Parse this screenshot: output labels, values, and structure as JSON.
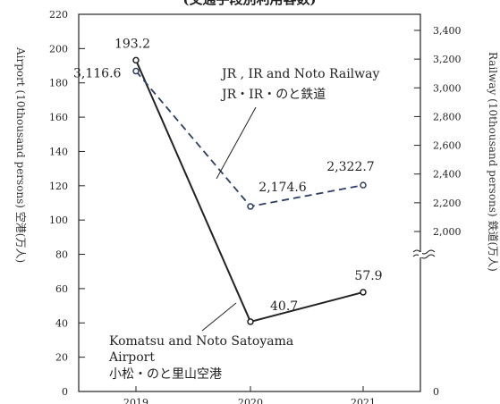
{
  "chart_data": {
    "type": "line",
    "title": "(交通手段別利用客数)",
    "x": [
      "2019",
      "2020",
      "2021"
    ],
    "left_axis": {
      "label": "Airport (10thousand persons) 空港(万人)",
      "range": [
        0,
        220
      ],
      "ticks": [
        0,
        20,
        40,
        60,
        80,
        100,
        120,
        140,
        160,
        180,
        200,
        220
      ]
    },
    "right_axis": {
      "label": "Railway (10thousand persons) 鉄道(万人)",
      "break_between": [
        0,
        2000
      ],
      "range_upper": [
        1800,
        3500
      ],
      "ticks": [
        {
          "value": 0,
          "label": "0"
        },
        {
          "value": 2000,
          "label": "2,000"
        },
        {
          "value": 2200,
          "label": "2,200"
        },
        {
          "value": 2400,
          "label": "2,400"
        },
        {
          "value": 2600,
          "label": "2,600"
        },
        {
          "value": 2800,
          "label": "2,800"
        },
        {
          "value": 3000,
          "label": "3,000"
        },
        {
          "value": 3200,
          "label": "3,200"
        },
        {
          "value": 3400,
          "label": "3,400"
        }
      ]
    },
    "series": [
      {
        "name_lines": [
          "Komatsu and Noto  Satoyama",
          "Airport",
          "小松・のと里山空港"
        ],
        "axis": "left",
        "style": "solid",
        "color": "#222222",
        "values": [
          193.2,
          40.7,
          57.9
        ],
        "labels": [
          "193.2",
          "40.7",
          "57.9"
        ]
      },
      {
        "name_lines": [
          "JR , IR and Noto Railway",
          "JR・IR・のと鉄道"
        ],
        "axis": "right",
        "style": "dashed",
        "color": "#2b3f66",
        "values": [
          3116.6,
          2174.6,
          2322.7
        ],
        "labels": [
          "3,116.6",
          "2,174.6",
          "2,322.7"
        ]
      }
    ],
    "grid": false
  }
}
